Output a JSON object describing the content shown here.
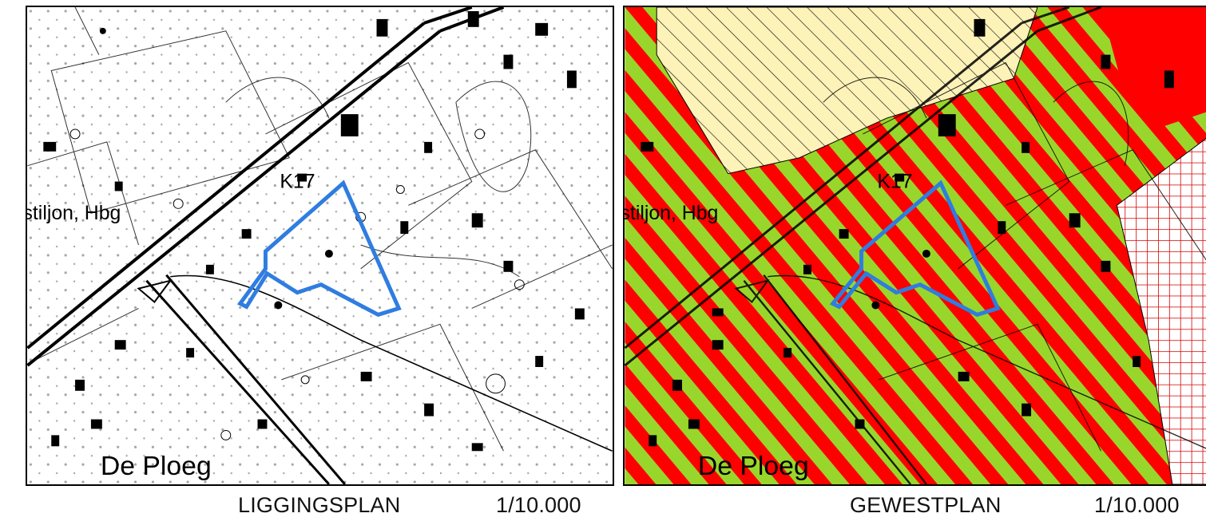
{
  "maps": [
    {
      "id": "liggingsplan",
      "title": "LIGGINGSPLAN",
      "scale": "1/10.000",
      "labels": {
        "road": "K17",
        "street": "stiljon, Hbg",
        "place": "De Ploeg"
      }
    },
    {
      "id": "gewestplan",
      "title": "GEWESTPLAN",
      "scale": "1/10.000",
      "labels": {
        "road": "K17",
        "street": "stiljon, Hbg",
        "place": "De Ploeg"
      }
    }
  ],
  "colors": {
    "outline": "#2f7de0",
    "zone_red": "#ff0000",
    "zone_green": "#99d62b",
    "zone_yellow": "#fdf2b8",
    "zone_grid": "#d40000"
  }
}
